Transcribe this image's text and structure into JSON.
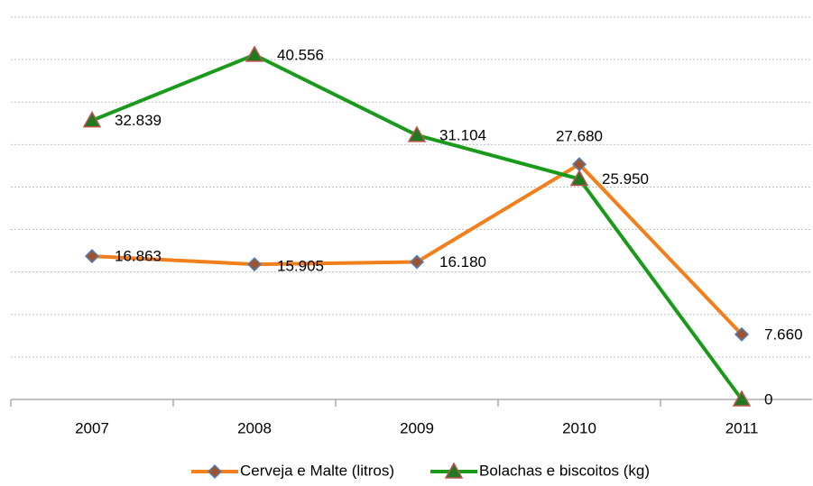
{
  "chart_data": {
    "type": "line",
    "categories": [
      "2007",
      "2008",
      "2009",
      "2010",
      "2011"
    ],
    "series": [
      {
        "name": "Cerveja e Malte (litros)",
        "color": "#f07f1c",
        "marker": "diamond",
        "values": [
          16863,
          15905,
          16180,
          27680,
          7660
        ],
        "value_labels": [
          "16.863",
          "15.905",
          "16.180",
          "27.680",
          "7.660"
        ]
      },
      {
        "name": "Bolachas e biscoitos (kg)",
        "color": "#1a9a1a",
        "marker": "triangle",
        "values": [
          32839,
          40556,
          31104,
          25950,
          0
        ],
        "value_labels": [
          "32.839",
          "40.556",
          "31.104",
          "25.950",
          "0"
        ]
      }
    ],
    "ylim": [
      0,
      45000
    ],
    "yticks": [
      0,
      5000,
      10000,
      15000,
      20000,
      25000,
      30000,
      35000,
      40000,
      45000
    ],
    "grid": true,
    "legend": "bottom"
  }
}
